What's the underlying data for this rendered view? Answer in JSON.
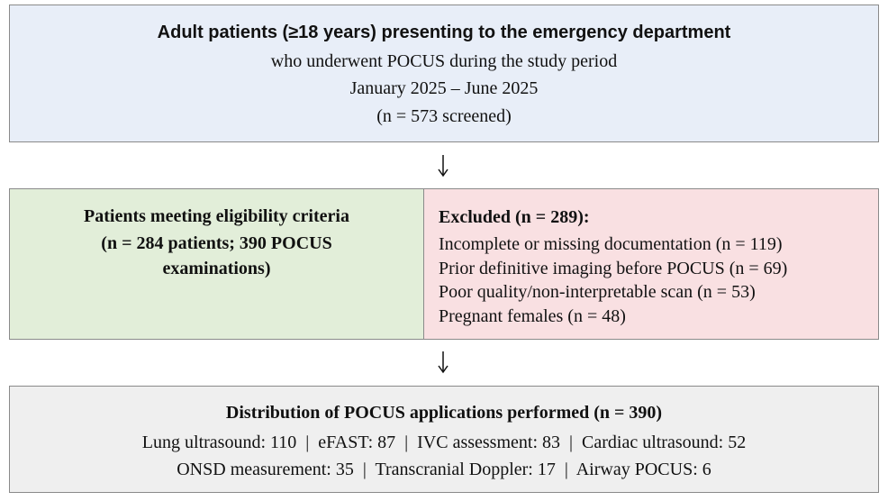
{
  "top_box": {
    "title": "Adult patients (≥18 years) presenting to the emergency department",
    "lines": [
      "who underwent POCUS during the study period",
      "January 2025 – June 2025",
      "(n = 573 screened)"
    ]
  },
  "eligible_box": {
    "title": "Patients meeting eligibility criteria",
    "detail": "(n = 284 patients; 390 POCUS examinations)"
  },
  "excluded_box": {
    "title": "Excluded (n = 289):",
    "items": [
      "Incomplete or missing documentation (n = 119)",
      "Prior definitive imaging before POCUS (n = 69)",
      "Poor quality/non-interpretable scan (n = 53)",
      "Pregnant females (n = 48)"
    ]
  },
  "distribution_box": {
    "title": "Distribution of POCUS applications performed (n = 390)",
    "lines": [
      "Lung ultrasound: 110  |  eFAST: 87  |  IVC assessment: 83  |  Cardiac ultrasound: 52",
      "ONSD measurement: 35  |  Transcranial Doppler: 17  |  Airway POCUS: 6"
    ]
  }
}
